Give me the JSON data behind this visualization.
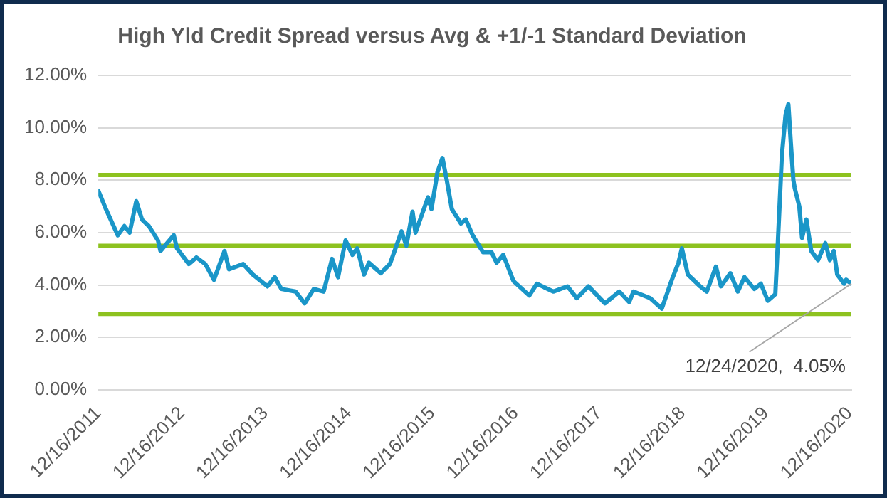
{
  "chart_data": {
    "type": "line",
    "title": "High Yld Credit Spread versus Avg & +1/-1 Standard Deviation",
    "x": [
      "2011-12-16",
      "2012-01-18",
      "2012-03-10",
      "2012-04-08",
      "2012-05-01",
      "2012-05-30",
      "2012-06-24",
      "2012-07-24",
      "2012-09-02",
      "2012-09-13",
      "2012-11-10",
      "2012-11-24",
      "2013-01-15",
      "2013-02-17",
      "2013-03-28",
      "2013-05-05",
      "2013-06-20",
      "2013-07-10",
      "2013-09-10",
      "2013-10-22",
      "2013-12-25",
      "2014-01-26",
      "2014-02-24",
      "2014-04-27",
      "2014-06-06",
      "2014-07-16",
      "2014-08-28",
      "2014-10-04",
      "2014-10-30",
      "2014-12-02",
      "2015-01-01",
      "2015-01-22",
      "2015-02-21",
      "2015-03-14",
      "2015-05-05",
      "2015-06-14",
      "2015-08-04",
      "2015-08-25",
      "2015-09-21",
      "2015-10-04",
      "2015-11-28",
      "2015-12-13",
      "2016-01-08",
      "2016-01-30",
      "2016-02-18",
      "2016-03-11",
      "2016-04-20",
      "2016-05-11",
      "2016-06-10",
      "2016-07-26",
      "2016-09-01",
      "2016-09-23",
      "2016-10-22",
      "2016-12-06",
      "2017-02-13",
      "2017-03-18",
      "2017-05-29",
      "2017-07-30",
      "2017-09-09",
      "2017-10-30",
      "2018-01-10",
      "2018-03-14",
      "2018-04-26",
      "2018-05-15",
      "2018-07-27",
      "2018-09-16",
      "2018-10-30",
      "2018-11-28",
      "2018-12-13",
      "2019-01-08",
      "2019-03-03",
      "2019-04-01",
      "2019-05-11",
      "2019-06-02",
      "2019-07-13",
      "2019-08-15",
      "2019-09-13",
      "2019-10-26",
      "2019-11-24",
      "2019-12-24",
      "2020-01-26",
      "2020-02-06",
      "2020-02-24",
      "2020-03-11",
      "2020-03-23",
      "2020-04-03",
      "2020-04-14",
      "2020-04-20",
      "2020-05-10",
      "2020-05-22",
      "2020-06-10",
      "2020-07-01",
      "2020-07-31",
      "2020-09-01",
      "2020-09-21",
      "2020-10-08",
      "2020-10-23",
      "2020-11-22",
      "2020-12-01",
      "2020-12-24"
    ],
    "series": [
      {
        "color": "#1a96c8",
        "values": [
          7.6,
          6.9,
          5.9,
          6.25,
          6.0,
          7.2,
          6.5,
          6.25,
          5.7,
          5.3,
          5.9,
          5.4,
          4.8,
          5.05,
          4.8,
          4.2,
          5.3,
          4.6,
          4.8,
          4.4,
          3.95,
          4.3,
          3.85,
          3.75,
          3.3,
          3.85,
          3.75,
          5.0,
          4.3,
          5.7,
          5.15,
          5.4,
          4.4,
          4.85,
          4.45,
          4.8,
          6.05,
          5.5,
          6.8,
          6.0,
          7.35,
          6.9,
          8.3,
          8.85,
          8.0,
          6.9,
          6.35,
          6.5,
          5.9,
          5.25,
          5.25,
          4.85,
          5.15,
          4.15,
          3.6,
          4.05,
          3.75,
          3.95,
          3.5,
          3.95,
          3.3,
          3.75,
          3.35,
          3.75,
          3.5,
          3.1,
          4.2,
          4.85,
          5.4,
          4.4,
          3.95,
          3.75,
          4.7,
          3.95,
          4.45,
          3.75,
          4.3,
          3.85,
          4.05,
          3.4,
          3.65,
          5.6,
          9.0,
          10.5,
          10.9,
          9.4,
          8.0,
          7.7,
          7.0,
          5.8,
          6.5,
          5.3,
          4.95,
          5.6,
          4.95,
          5.3,
          4.4,
          4.05,
          4.2,
          4.05
        ]
      }
    ],
    "xlim": [
      "2011-12-16",
      "2020-12-24"
    ],
    "xticks": [
      {
        "value": "2011-12-16",
        "label": "12/16/2011"
      },
      {
        "value": "2012-12-16",
        "label": "12/16/2012"
      },
      {
        "value": "2013-12-16",
        "label": "12/16/2013"
      },
      {
        "value": "2014-12-16",
        "label": "12/16/2014"
      },
      {
        "value": "2015-12-16",
        "label": "12/16/2015"
      },
      {
        "value": "2016-12-16",
        "label": "12/16/2016"
      },
      {
        "value": "2017-12-16",
        "label": "12/16/2017"
      },
      {
        "value": "2018-12-16",
        "label": "12/16/2018"
      },
      {
        "value": "2019-12-16",
        "label": "12/16/2019"
      },
      {
        "value": "2020-12-16",
        "label": "12/16/2020"
      }
    ],
    "ylim": [
      0,
      12
    ],
    "yticks": [
      {
        "value": 0,
        "label": "0.00%"
      },
      {
        "value": 2,
        "label": "2.00%"
      },
      {
        "value": 4,
        "label": "4.00%"
      },
      {
        "value": 6,
        "label": "6.00%"
      },
      {
        "value": 8,
        "label": "8.00%"
      },
      {
        "value": 10,
        "label": "10.00%"
      },
      {
        "value": 12,
        "label": "12.00%"
      }
    ],
    "ref_lines": [
      {
        "axis": "y",
        "value": 8.2,
        "color": "#8dc21f"
      },
      {
        "axis": "y",
        "value": 5.5,
        "color": "#8dc21f"
      },
      {
        "axis": "y",
        "value": 2.9,
        "color": "#8dc21f"
      }
    ],
    "annotations": [
      {
        "text": "12/24/2020,  4.05%",
        "x": "2020-12-24",
        "y": 4.05
      }
    ],
    "grid": "y",
    "legend": false,
    "marker": "none",
    "line_style": "solid"
  }
}
